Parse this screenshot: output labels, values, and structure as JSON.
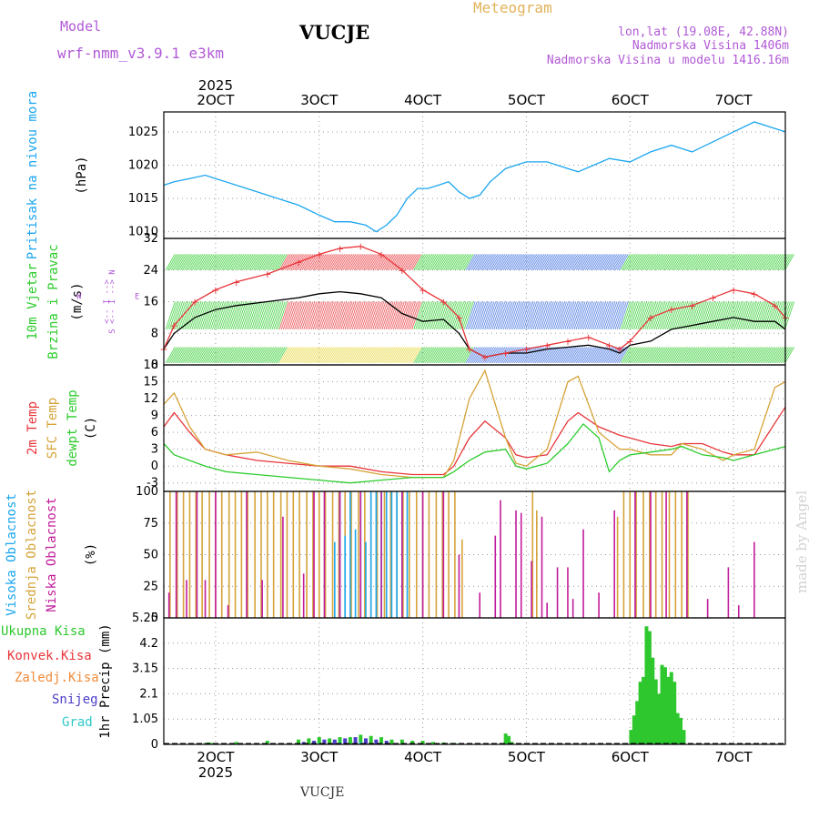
{
  "header": {
    "model_label": "Model",
    "model_name": "wrf-nmm_v3.9.1 e3km",
    "station": "VUCJE",
    "product": "Meteogram",
    "lonlat": "lon,lat (19.08E, 42.88N)",
    "elevation": "Nadmorska Visina 1406m",
    "model_elevation": "Nadmorska Visina u modelu 1416.16m"
  },
  "footer": {
    "station": "VUCJE",
    "watermark": "made by Angel"
  },
  "colors": {
    "pressure": "#1ba6f0",
    "temp2m": "#e8353a",
    "sfc": "#d6a339",
    "dewpt": "#2ccc2c",
    "purple": "#b15ad6",
    "magenta": "#c21c9a",
    "precip": "#2ec82e",
    "snow": "#4a3cc8",
    "grad": "#30c8c8",
    "orange": "#f08c3a",
    "meteo": "#e2b25a",
    "text": "#000000"
  },
  "chart_data": [
    {
      "id": "pressure",
      "type": "line",
      "ylabel_lines": [
        "Pritisak na nivou mora",
        "(hPa)"
      ],
      "yticks": [
        1010,
        1015,
        1020,
        1025
      ],
      "ylim": [
        1009,
        1028
      ],
      "xlim": [
        1.5,
        7.5
      ],
      "xticks_top": [
        "2OCT",
        "3OCT",
        "4OCT",
        "5OCT",
        "6OCT",
        "7OCT"
      ],
      "year_top": "2025",
      "series": [
        {
          "name": "Pritisak",
          "color": "#1ba6f0",
          "x": [
            1.5,
            1.6,
            1.75,
            1.9,
            2.0,
            2.2,
            2.4,
            2.6,
            2.8,
            3.0,
            3.15,
            3.3,
            3.45,
            3.55,
            3.65,
            3.75,
            3.85,
            3.95,
            4.05,
            4.15,
            4.25,
            4.35,
            4.45,
            4.55,
            4.65,
            4.8,
            5.0,
            5.2,
            5.4,
            5.5,
            5.65,
            5.8,
            6.0,
            6.2,
            6.4,
            6.5,
            6.6,
            6.8,
            7.0,
            7.2,
            7.4,
            7.5
          ],
          "y": [
            1017,
            1017.5,
            1018,
            1018.5,
            1018,
            1017,
            1016,
            1015,
            1014,
            1012.5,
            1011.5,
            1011.5,
            1011,
            1010,
            1011,
            1012.5,
            1015,
            1016.5,
            1016.5,
            1017,
            1017.5,
            1016,
            1015,
            1015.5,
            1017.5,
            1019.5,
            1020.5,
            1020.5,
            1019.5,
            1019,
            1020,
            1021,
            1020.5,
            1022,
            1023,
            1022.5,
            1022,
            1023.5,
            1025,
            1026.5,
            1025.5,
            1025
          ]
        }
      ]
    },
    {
      "id": "wind",
      "type": "line",
      "ylabel_lines": [
        "10m Vjetar",
        "Brzina i Pravac",
        "(m/s)"
      ],
      "yticks": [
        0,
        8,
        16,
        24,
        32
      ],
      "ylim": [
        0,
        32
      ],
      "xlim": [
        1.5,
        7.5
      ],
      "compass": [
        "W",
        "<-- I -->",
        "E",
        "S <-- I --> N"
      ],
      "series": [
        {
          "name": "Brzina",
          "color": "#000000",
          "x": [
            1.5,
            1.6,
            1.8,
            2.0,
            2.2,
            2.5,
            2.8,
            3.0,
            3.2,
            3.4,
            3.6,
            3.8,
            4.0,
            4.2,
            4.35,
            4.45,
            4.6,
            4.8,
            5.0,
            5.2,
            5.4,
            5.6,
            5.8,
            5.9,
            6.0,
            6.2,
            6.4,
            6.6,
            6.8,
            7.0,
            7.2,
            7.4,
            7.5
          ],
          "y": [
            4,
            8,
            12,
            14,
            15,
            16,
            17,
            18,
            18.5,
            18,
            17,
            13,
            11,
            11.5,
            8,
            4,
            2,
            3,
            3,
            4,
            4.5,
            5,
            4,
            3,
            5,
            6,
            9,
            10,
            11,
            12,
            11,
            11,
            9
          ]
        },
        {
          "name": "Udari",
          "color": "#e8353a",
          "x": [
            1.5,
            1.6,
            1.8,
            2.0,
            2.2,
            2.5,
            2.8,
            3.0,
            3.2,
            3.4,
            3.6,
            3.8,
            4.0,
            4.2,
            4.35,
            4.45,
            4.6,
            4.8,
            5.0,
            5.2,
            5.4,
            5.6,
            5.8,
            5.9,
            6.0,
            6.2,
            6.4,
            6.6,
            6.8,
            7.0,
            7.2,
            7.4,
            7.5
          ],
          "y": [
            4,
            10,
            16,
            19,
            21,
            23,
            26,
            28,
            29.5,
            30,
            28,
            24,
            19,
            16,
            12,
            4,
            2,
            3,
            4,
            5,
            6,
            7,
            5,
            4,
            6,
            12,
            14,
            15,
            17,
            19,
            18,
            15,
            12
          ]
        }
      ]
    },
    {
      "id": "temperature",
      "type": "line",
      "ylabel_lines": [
        "2m Temp",
        "SFC Temp",
        "dewpt Temp",
        "(C)"
      ],
      "yticks": [
        -3,
        0,
        3,
        6,
        9,
        12,
        15,
        18
      ],
      "ylim": [
        -4.5,
        18
      ],
      "xlim": [
        1.5,
        7.5
      ],
      "series": [
        {
          "name": "2m Temp",
          "color": "#e8353a",
          "x": [
            1.5,
            1.6,
            1.75,
            1.9,
            2.1,
            2.4,
            2.7,
            3.0,
            3.3,
            3.6,
            3.9,
            4.2,
            4.3,
            4.45,
            4.6,
            4.8,
            4.9,
            5.0,
            5.2,
            5.4,
            5.5,
            5.7,
            5.9,
            6.0,
            6.2,
            6.4,
            6.5,
            6.7,
            6.9,
            7.0,
            7.2,
            7.5
          ],
          "y": [
            7,
            9.5,
            6,
            3,
            2,
            1,
            0.5,
            0,
            0,
            -1,
            -1.5,
            -1.5,
            0,
            5,
            8,
            5,
            2,
            1.5,
            2,
            8,
            9.5,
            7,
            5.5,
            5,
            4,
            3.5,
            4,
            4,
            2.5,
            2,
            2,
            10.5
          ]
        },
        {
          "name": "SFC Temp",
          "color": "#d6a339",
          "x": [
            1.5,
            1.6,
            1.75,
            1.9,
            2.1,
            2.4,
            2.7,
            3.0,
            3.3,
            3.6,
            3.9,
            4.2,
            4.3,
            4.45,
            4.6,
            4.8,
            4.9,
            5.0,
            5.2,
            5.4,
            5.5,
            5.7,
            5.9,
            6.0,
            6.2,
            6.4,
            6.5,
            6.7,
            6.9,
            7.0,
            7.2,
            7.4,
            7.5
          ],
          "y": [
            11,
            13,
            7,
            3,
            2,
            2.5,
            1,
            0,
            -0.5,
            -1.5,
            -2,
            -2,
            1,
            12,
            17,
            5,
            0.5,
            0,
            3,
            15,
            16,
            6,
            3,
            3,
            2,
            2,
            4,
            3,
            1,
            2,
            3,
            14,
            15
          ]
        },
        {
          "name": "dewpt Temp",
          "color": "#2ccc2c",
          "x": [
            1.5,
            1.6,
            1.75,
            1.9,
            2.1,
            2.4,
            2.7,
            3.0,
            3.3,
            3.6,
            3.9,
            4.2,
            4.3,
            4.45,
            4.6,
            4.8,
            4.9,
            5.0,
            5.2,
            5.4,
            5.55,
            5.7,
            5.8,
            5.9,
            6.0,
            6.2,
            6.4,
            6.5,
            6.7,
            6.9,
            7.0,
            7.2,
            7.5
          ],
          "y": [
            4,
            2,
            1,
            0,
            -1,
            -1.5,
            -2,
            -2.5,
            -3,
            -2.5,
            -2,
            -2,
            -1,
            1,
            2.5,
            3,
            0,
            -0.5,
            0.5,
            4,
            7.5,
            5,
            -1,
            1,
            2,
            2.5,
            3,
            3.5,
            2,
            1.5,
            1,
            2,
            3.5
          ]
        }
      ]
    },
    {
      "id": "clouds",
      "type": "bar",
      "ylabel_lines": [
        "Visoka Oblacnost",
        "Srednja Oblacnost",
        "Niska Oblacnost",
        "(%)"
      ],
      "yticks": [
        0,
        25,
        50,
        75,
        100
      ],
      "ylim": [
        0,
        100
      ],
      "xlim": [
        1.5,
        7.5
      ],
      "series": [
        {
          "name": "Srednja Oblacnost",
          "color": "#d6a339",
          "x": [
            1.56,
            1.63,
            1.69,
            1.75,
            1.81,
            1.87,
            1.94,
            2.0,
            2.06,
            2.13,
            2.19,
            2.25,
            2.31,
            2.38,
            2.44,
            2.5,
            2.56,
            2.63,
            2.69,
            2.75,
            2.81,
            2.88,
            2.94,
            3.0,
            3.06,
            3.13,
            3.19,
            3.25,
            3.31,
            3.38,
            3.44,
            3.5,
            3.56,
            3.63,
            3.69,
            3.75,
            3.81,
            3.87,
            3.94,
            4.0,
            4.06,
            4.13,
            4.19,
            4.25,
            4.31,
            4.38,
            5.06,
            5.1,
            5.88,
            5.94,
            6.0,
            6.06,
            6.13,
            6.19,
            6.25,
            6.31,
            6.38,
            6.44,
            6.5,
            6.56
          ],
          "y": [
            100,
            100,
            100,
            100,
            100,
            100,
            100,
            100,
            100,
            100,
            100,
            100,
            100,
            100,
            100,
            100,
            100,
            100,
            100,
            100,
            100,
            100,
            100,
            100,
            100,
            100,
            100,
            100,
            100,
            100,
            100,
            100,
            100,
            100,
            100,
            100,
            100,
            100,
            100,
            100,
            100,
            100,
            100,
            100,
            100,
            62,
            100,
            85,
            80,
            100,
            100,
            100,
            100,
            100,
            100,
            100,
            100,
            100,
            100,
            100
          ]
        },
        {
          "name": "Visoka Oblacnost",
          "color": "#1ba6f0",
          "x": [
            3.15,
            3.2,
            3.25,
            3.3,
            3.35,
            3.4,
            3.45,
            3.5,
            3.55,
            3.6,
            3.65,
            3.7,
            3.75,
            3.8,
            3.85
          ],
          "y": [
            60,
            100,
            65,
            100,
            70,
            100,
            60,
            100,
            100,
            100,
            100,
            100,
            100,
            100,
            100
          ]
        },
        {
          "name": "Niska Oblacnost",
          "color": "#c21c9a",
          "x": [
            1.55,
            1.62,
            1.72,
            1.82,
            1.9,
            2.0,
            2.12,
            2.3,
            2.45,
            2.65,
            2.85,
            2.95,
            3.05,
            3.2,
            3.4,
            3.6,
            3.8,
            4.0,
            4.2,
            4.35,
            4.55,
            4.7,
            4.75,
            4.9,
            4.95,
            5.05,
            5.15,
            5.2,
            5.3,
            5.4,
            5.45,
            5.55,
            5.7,
            5.85,
            6.05,
            6.2,
            6.35,
            6.55,
            6.75,
            6.95,
            7.05,
            7.2
          ],
          "y": [
            20,
            100,
            30,
            100,
            30,
            100,
            10,
            100,
            30,
            80,
            35,
            100,
            100,
            100,
            100,
            100,
            100,
            100,
            100,
            50,
            20,
            65,
            93,
            85,
            83,
            45,
            80,
            12,
            40,
            40,
            15,
            70,
            20,
            85,
            100,
            100,
            100,
            100,
            15,
            40,
            10,
            60
          ]
        }
      ]
    },
    {
      "id": "precip",
      "type": "bar",
      "ylabel_lines": [
        "1hr Precip (mm)"
      ],
      "legend": [
        "Ukupna Kisa",
        "Konvek.Kisa",
        "Zaledj.Kisa",
        "Snijeg",
        "Grad"
      ],
      "yticks": [
        0,
        1.05,
        2.1,
        3.15,
        4.2,
        5.25
      ],
      "ytick_labels": [
        "0",
        "1.05",
        "2.1",
        "3.15",
        "4.2",
        "5.25"
      ],
      "ylim": [
        0,
        5.25
      ],
      "xlim": [
        1.5,
        7.5
      ],
      "xticks_bottom": [
        "2OCT",
        "3OCT",
        "4OCT",
        "5OCT",
        "6OCT",
        "7OCT"
      ],
      "year_bottom": "2025",
      "series": [
        {
          "name": "Ukupna Kisa",
          "color": "#2ec82e",
          "x": [
            1.9,
            1.93,
            1.96,
            2.2,
            2.5,
            2.8,
            2.9,
            3.0,
            3.1,
            3.2,
            3.3,
            3.4,
            3.5,
            3.6,
            3.7,
            3.8,
            3.9,
            4.0,
            4.1,
            4.2,
            4.28,
            4.32,
            4.8,
            4.83,
            4.86,
            6.01,
            6.04,
            6.07,
            6.1,
            6.13,
            6.16,
            6.19,
            6.22,
            6.25,
            6.28,
            6.31,
            6.34,
            6.37,
            6.4,
            6.43,
            6.46,
            6.49,
            6.52
          ],
          "y": [
            0.05,
            0.08,
            0.06,
            0.1,
            0.15,
            0.2,
            0.25,
            0.3,
            0.25,
            0.3,
            0.3,
            0.4,
            0.35,
            0.3,
            0.2,
            0.2,
            0.15,
            0.15,
            0.1,
            0.08,
            0.06,
            0.04,
            0.45,
            0.35,
            0.1,
            0.6,
            1.2,
            1.8,
            2.6,
            2.8,
            4.9,
            4.7,
            3.6,
            2.7,
            2.1,
            3.3,
            3.2,
            2.8,
            3.0,
            2.6,
            1.3,
            1.1,
            0.6
          ]
        },
        {
          "name": "Snijeg",
          "color": "#4a3cc8",
          "x": [
            2.85,
            2.95,
            3.05,
            3.15,
            3.25,
            3.35,
            3.45,
            3.55,
            3.65
          ],
          "y": [
            0.1,
            0.15,
            0.2,
            0.2,
            0.25,
            0.3,
            0.25,
            0.2,
            0.15
          ]
        },
        {
          "name": "Grad",
          "color": "#30c8c8",
          "x": [
            3.0,
            3.2,
            3.4,
            3.6
          ],
          "y": [
            0.05,
            0.08,
            0.1,
            0.05
          ]
        }
      ]
    }
  ]
}
